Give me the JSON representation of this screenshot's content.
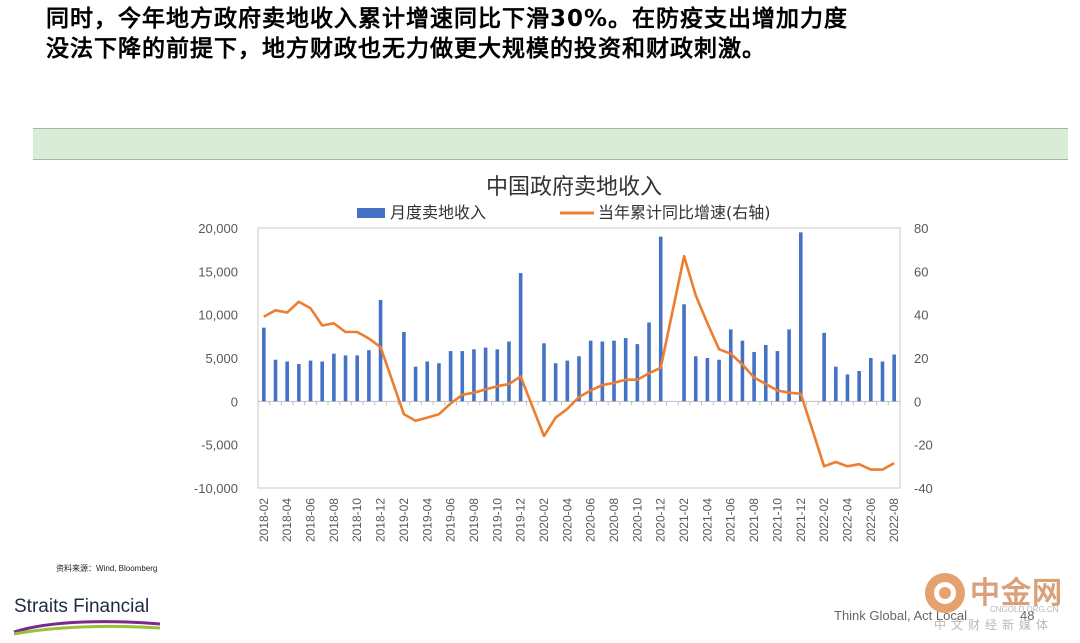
{
  "headline": {
    "line1": "同时，今年地方政府卖地收入累计增速同比下滑30%。在防疫支出增加力度",
    "line2": "没法下降的前提下，地方财政也无力做更大规模的投资和财政刺激。"
  },
  "source": "资料来源：Wind, Bloomberg",
  "logo": {
    "text": "Straits Financial"
  },
  "footer": {
    "tagline": "Think Global, Act Local",
    "page": "48"
  },
  "watermark": {
    "name": "中金网",
    "url": "CNGOLD.ORG.CN",
    "sub": "中文财经新媒体"
  },
  "colors": {
    "bar": "#4472c4",
    "line": "#ed7d31",
    "green_band": "#d9ecd8"
  },
  "chart_data": {
    "type": "bar",
    "title": "中国政府卖地收入",
    "legend_position": "top",
    "grid": false,
    "categories": [
      "2018-02",
      "2018-03",
      "2018-04",
      "2018-05",
      "2018-06",
      "2018-07",
      "2018-08",
      "2018-09",
      "2018-10",
      "2018-11",
      "2018-12",
      "2019-01",
      "2019-02",
      "2019-03",
      "2019-04",
      "2019-05",
      "2019-06",
      "2019-07",
      "2019-08",
      "2019-09",
      "2019-10",
      "2019-11",
      "2019-12",
      "2020-01",
      "2020-02",
      "2020-03",
      "2020-04",
      "2020-05",
      "2020-06",
      "2020-07",
      "2020-08",
      "2020-09",
      "2020-10",
      "2020-11",
      "2020-12",
      "2021-01",
      "2021-02",
      "2021-03",
      "2021-04",
      "2021-05",
      "2021-06",
      "2021-07",
      "2021-08",
      "2021-09",
      "2021-10",
      "2021-11",
      "2021-12",
      "2022-01",
      "2022-02",
      "2022-03",
      "2022-04",
      "2022-05",
      "2022-06",
      "2022-07",
      "2022-08"
    ],
    "tick_labels": [
      "2018-02",
      "2018-04",
      "2018-06",
      "2018-08",
      "2018-10",
      "2018-12",
      "2019-02",
      "2019-04",
      "2019-06",
      "2019-08",
      "2019-10",
      "2019-12",
      "2020-02",
      "2020-04",
      "2020-06",
      "2020-08",
      "2020-10",
      "2020-12",
      "2021-02",
      "2021-04",
      "2021-06",
      "2021-08",
      "2021-10",
      "2021-12",
      "2022-02",
      "2022-04",
      "2022-06",
      "2022-08"
    ],
    "left_axis": {
      "ylim": [
        -10000,
        20000
      ],
      "ticks": [
        "-10,000",
        "-5,000",
        "0",
        "5,000",
        "10,000",
        "15,000",
        "20,000"
      ]
    },
    "right_axis": {
      "ylim": [
        -40,
        80
      ],
      "ticks": [
        "-40",
        "-20",
        "0",
        "20",
        "40",
        "60",
        "80"
      ]
    },
    "series": [
      {
        "name": "月度卖地收入",
        "type": "bar",
        "axis": "left",
        "values": [
          8500,
          4800,
          4600,
          4300,
          4700,
          4600,
          5500,
          5300,
          5300,
          5900,
          11700,
          0,
          8000,
          4000,
          4600,
          4400,
          5800,
          5800,
          6000,
          6200,
          6000,
          6900,
          14800,
          0,
          6700,
          4400,
          4700,
          5200,
          7000,
          6900,
          7000,
          7300,
          6600,
          9100,
          19000,
          0,
          11200,
          5200,
          5000,
          4800,
          8300,
          7000,
          5700,
          6500,
          5800,
          8300,
          19500,
          0,
          7900,
          4000,
          3100,
          3500,
          5000,
          4600,
          5400
        ]
      },
      {
        "name": "当年累计同比增速(右轴)",
        "type": "line",
        "axis": "right",
        "values": [
          39,
          42,
          41,
          46,
          43,
          35,
          36,
          32,
          32,
          29,
          25,
          null,
          -6,
          -9,
          -7.5,
          -6,
          -1,
          3,
          4,
          5.5,
          7,
          8,
          11.5,
          null,
          -16,
          -7.5,
          -3.5,
          2,
          5,
          7.5,
          8.5,
          10,
          10,
          13,
          15.5,
          null,
          67,
          49,
          36,
          24,
          22,
          17,
          11,
          8,
          5,
          4,
          3.5,
          null,
          -30,
          -28,
          -30,
          -29,
          -31.5,
          -31.5,
          -28.5
        ]
      }
    ]
  }
}
